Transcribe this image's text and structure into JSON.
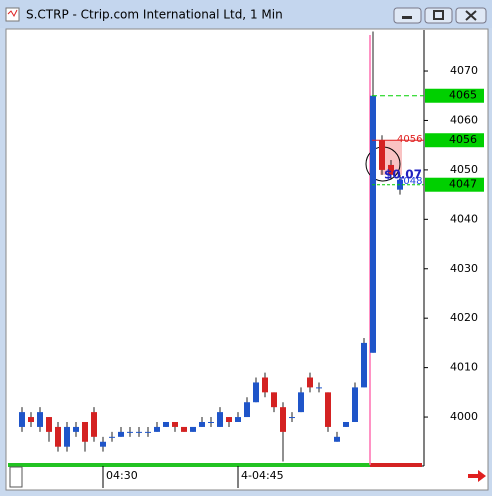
{
  "window": {
    "title": "S.CTRP - Ctrip.com International Ltd, 1 Min"
  },
  "chart_data": {
    "type": "candlestick",
    "categories": [
      null,
      null,
      null,
      null,
      null,
      null,
      null,
      null,
      null,
      "04:30",
      null,
      null,
      null,
      null,
      null,
      null,
      null,
      null,
      null,
      null,
      null,
      null,
      null,
      null,
      "4-04:45",
      null,
      null,
      null,
      null,
      null,
      null,
      null,
      null,
      null,
      null,
      null,
      null,
      null,
      null,
      null,
      null,
      null,
      null
    ],
    "open": [
      3998,
      4000,
      3998,
      4000,
      3998,
      3994,
      3997,
      3999,
      4001,
      3994,
      3996,
      3996,
      3997,
      3997,
      3997,
      3997,
      3998,
      3999,
      3998,
      3997,
      3998,
      3999,
      3998,
      4000,
      3999,
      4000,
      4003,
      4008,
      4005,
      4002,
      4000,
      4001,
      4008,
      4006,
      4005,
      3995,
      3998,
      3999,
      4006,
      4013,
      4056,
      4051,
      4046
    ],
    "high": [
      4002,
      4001,
      4002,
      4000,
      3999,
      3999,
      3999,
      3999,
      4002,
      3996,
      3997,
      3998,
      3998,
      3998,
      3998,
      3999,
      3999,
      3999,
      3998,
      3998,
      4000,
      4000,
      4002,
      4000,
      4001,
      4004,
      4008,
      4009,
      4005,
      4003,
      4001,
      4006,
      4009,
      4007,
      4005,
      3997,
      3999,
      4007,
      4016,
      4078,
      4057,
      4052,
      4049
    ],
    "low": [
      3997,
      3998,
      3997,
      3995,
      3993,
      3993,
      3996,
      3993,
      3995,
      3993,
      3995,
      3996,
      3996,
      3996,
      3996,
      3997,
      3998,
      3997,
      3997,
      3997,
      3998,
      3998,
      3998,
      3998,
      3999,
      4000,
      4003,
      4004,
      4001,
      3991,
      3999,
      4001,
      4005,
      4005,
      3997,
      3995,
      3998,
      3999,
      4006,
      4013,
      4049,
      4048,
      4045
    ],
    "close": [
      4001,
      3999,
      4001,
      3997,
      3994,
      3998,
      3998,
      3995,
      3996,
      3995,
      3996,
      3997,
      3997,
      3997,
      3997,
      3998,
      3999,
      3998,
      3997,
      3998,
      3999,
      3999,
      4001,
      3999,
      4000,
      4003,
      4007,
      4005,
      4002,
      3997,
      4000,
      4005,
      4006,
      4006,
      3998,
      3996,
      3999,
      4006,
      4015,
      4065,
      4050,
      4049,
      4048
    ],
    "up_color": "#1f55c9",
    "down_color": "#d42222",
    "ylim": [
      3990.3,
      4078.3
    ],
    "yticks": [
      4000,
      4010,
      4020,
      4030,
      4040,
      4050,
      4060,
      4070
    ],
    "price_tags": [
      {
        "value": 4065,
        "color": "#00d000"
      },
      {
        "value": 4056,
        "color": "#00d000"
      },
      {
        "value": 4047,
        "color": "#00d000"
      }
    ],
    "level_labels": [
      {
        "value": 4056,
        "color": "#e02020"
      },
      {
        "value": 4048,
        "color": "#2040e0"
      }
    ],
    "annotation": "$0.07"
  }
}
